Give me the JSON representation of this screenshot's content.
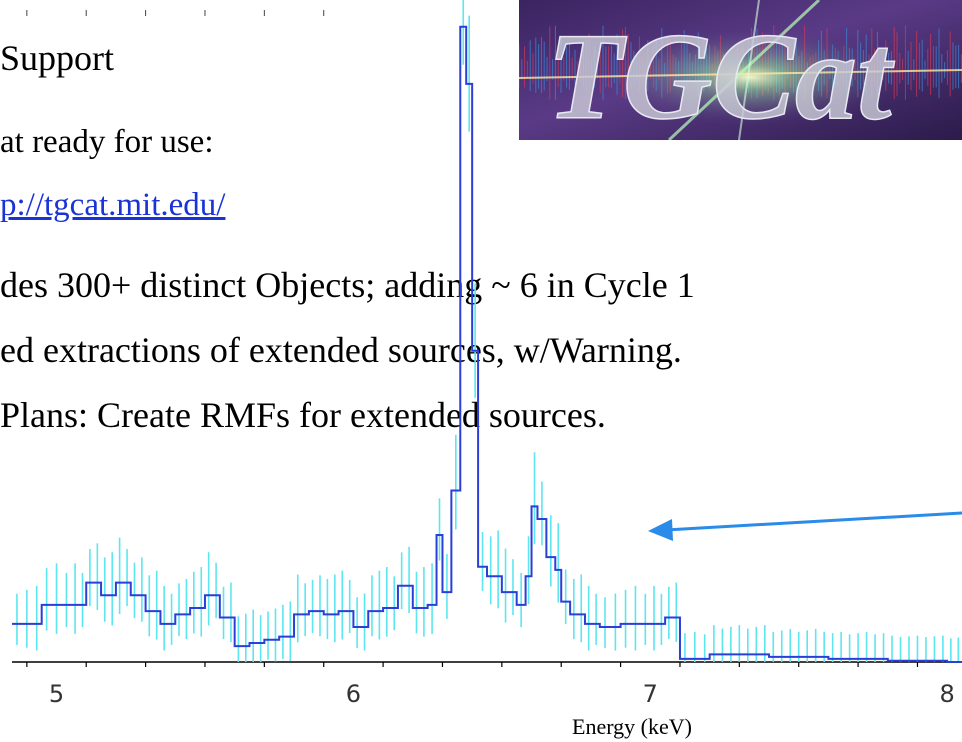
{
  "slide": {
    "heading": "Support",
    "line1": "at ready for use:",
    "link": "p://tgcat.mit.edu/",
    "line3": "des 300+ distinct Objects;  adding ~ 6 in Cycle 1",
    "line4": "ed extractions of extended sources, w/Warning.",
    "line5": "Plans: Create RMFs for extended sources.",
    "logo_text": "TGCat",
    "colors": {
      "text": "#000000",
      "link": "#1a33d6",
      "spectrum": "#2b3fd8",
      "error_bars": "#5ce6f0",
      "arrow": "#2a8ce8"
    }
  },
  "chart_data": {
    "type": "line",
    "xlabel": "Energy (keV)",
    "ylabel": "",
    "title": "",
    "xlim": [
      4.85,
      8.05
    ],
    "ylim": [
      0,
      10.2
    ],
    "x_ticks": [
      5,
      6,
      7,
      8
    ],
    "x_tick_labels": [
      "5",
      "6",
      "7",
      "8"
    ],
    "series": [
      {
        "style": "step",
        "x": [
          4.85,
          4.95,
          5.05,
          5.1,
          5.15,
          5.2,
          5.25,
          5.3,
          5.35,
          5.4,
          5.45,
          5.5,
          5.55,
          5.6,
          5.65,
          5.7,
          5.75,
          5.8,
          5.85,
          5.9,
          5.95,
          6.0,
          6.05,
          6.1,
          6.15,
          6.2,
          6.25,
          6.28,
          6.3,
          6.33,
          6.36,
          6.38,
          6.4,
          6.42,
          6.45,
          6.5,
          6.55,
          6.58,
          6.6,
          6.62,
          6.65,
          6.68,
          6.7,
          6.73,
          6.78,
          6.83,
          6.9,
          7.0,
          7.05,
          7.1,
          7.2,
          7.4,
          7.6,
          7.8,
          8.0
        ],
        "y": [
          0.6,
          0.9,
          0.9,
          1.25,
          1.05,
          1.25,
          1.05,
          0.8,
          0.6,
          0.75,
          0.85,
          1.05,
          0.7,
          0.25,
          0.3,
          0.35,
          0.4,
          0.75,
          0.8,
          0.75,
          0.8,
          0.55,
          0.8,
          0.85,
          1.2,
          0.85,
          0.9,
          2.0,
          1.1,
          2.7,
          10.0,
          9.1,
          4.9,
          1.5,
          1.35,
          1.1,
          0.9,
          1.35,
          2.45,
          2.25,
          1.65,
          1.45,
          0.95,
          0.75,
          0.6,
          0.55,
          0.6,
          0.6,
          0.7,
          0.05,
          0.12,
          0.08,
          0.05,
          0.02,
          0.0
        ]
      }
    ],
    "annotation": "arrow pointing at spectrum"
  }
}
